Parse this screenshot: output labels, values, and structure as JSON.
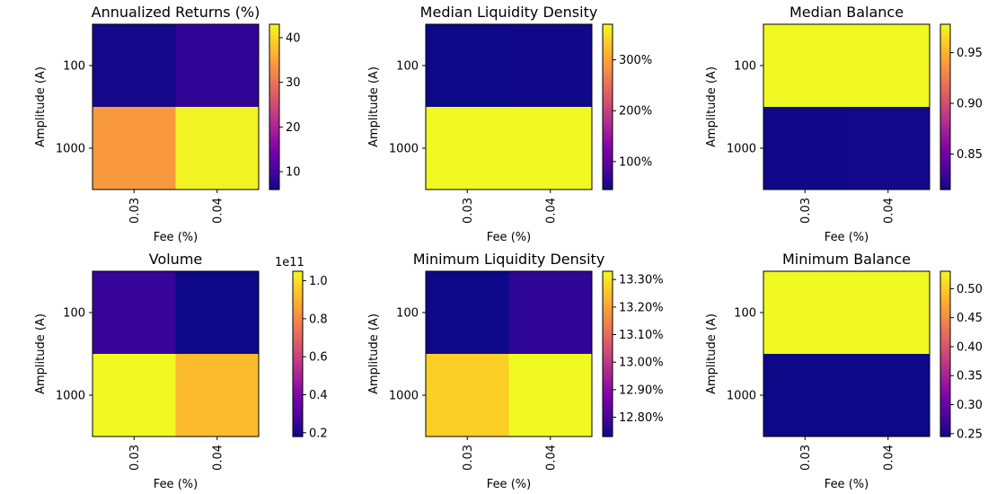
{
  "colors": {
    "plasma": [
      "#0d0887",
      "#46039f",
      "#7201a8",
      "#9c179e",
      "#bd3786",
      "#d8576b",
      "#ed7953",
      "#fb9f3a",
      "#fdca26",
      "#f0f921"
    ]
  },
  "chart_data": [
    {
      "type": "heatmap",
      "title": "Annualized Returns (%)",
      "xlabel": "Fee (%)",
      "ylabel": "Amplitude (A)",
      "x_ticks": [
        "0.03",
        "0.04"
      ],
      "y_ticks": [
        "100",
        "1000"
      ],
      "values": [
        [
          6.5,
          8.5
        ],
        [
          34.0,
          42.5
        ]
      ],
      "colorbar": {
        "min": 6.0,
        "max": 43.0,
        "ticks": [
          10,
          20,
          30,
          40
        ],
        "tick_labels": [
          "10",
          "20",
          "30",
          "40"
        ],
        "offset": ""
      }
    },
    {
      "type": "heatmap",
      "title": "Median Liquidity Density",
      "xlabel": "Fee (%)",
      "ylabel": "Amplitude (A)",
      "x_ticks": [
        "0.03",
        "0.04"
      ],
      "y_ticks": [
        "100",
        "1000"
      ],
      "values": [
        [
          45,
          47
        ],
        [
          370,
          370
        ]
      ],
      "colorbar": {
        "min": 45,
        "max": 370,
        "ticks": [
          100,
          200,
          300
        ],
        "tick_labels": [
          "100%",
          "200%",
          "300%"
        ],
        "offset": ""
      }
    },
    {
      "type": "heatmap",
      "title": "Median Balance",
      "xlabel": "Fee (%)",
      "ylabel": "Amplitude (A)",
      "x_ticks": [
        "0.03",
        "0.04"
      ],
      "y_ticks": [
        "100",
        "1000"
      ],
      "values": [
        [
          0.978,
          0.978
        ],
        [
          0.816,
          0.817
        ]
      ],
      "colorbar": {
        "min": 0.815,
        "max": 0.978,
        "ticks": [
          0.85,
          0.9,
          0.95
        ],
        "tick_labels": [
          "0.85",
          "0.90",
          "0.95"
        ],
        "offset": ""
      }
    },
    {
      "type": "heatmap",
      "title": "Volume",
      "xlabel": "Fee (%)",
      "ylabel": "Amplitude (A)",
      "x_ticks": [
        "0.03",
        "0.04"
      ],
      "y_ticks": [
        "100",
        "1000"
      ],
      "values": [
        [
          0.25,
          0.18
        ],
        [
          1.05,
          0.92
        ]
      ],
      "colorbar": {
        "min": 0.18,
        "max": 1.05,
        "ticks": [
          0.2,
          0.4,
          0.6,
          0.8,
          1.0
        ],
        "tick_labels": [
          "0.2",
          "0.4",
          "0.6",
          "0.8",
          "1.0"
        ],
        "offset": "1e11"
      }
    },
    {
      "type": "heatmap",
      "title": "Minimum Liquidity Density",
      "xlabel": "Fee (%)",
      "ylabel": "Amplitude (A)",
      "x_ticks": [
        "0.03",
        "0.04"
      ],
      "y_ticks": [
        "100",
        "1000"
      ],
      "values": [
        [
          12.73,
          12.77
        ],
        [
          13.27,
          13.33
        ]
      ],
      "colorbar": {
        "min": 12.73,
        "max": 13.33,
        "ticks": [
          12.8,
          12.9,
          13.0,
          13.1,
          13.2,
          13.3
        ],
        "tick_labels": [
          "12.80%",
          "12.90%",
          "13.00%",
          "13.10%",
          "13.20%",
          "13.30%"
        ],
        "offset": ""
      }
    },
    {
      "type": "heatmap",
      "title": "Minimum Balance",
      "xlabel": "Fee (%)",
      "ylabel": "Amplitude (A)",
      "x_ticks": [
        "0.03",
        "0.04"
      ],
      "y_ticks": [
        "100",
        "1000"
      ],
      "values": [
        [
          0.53,
          0.53
        ],
        [
          0.245,
          0.245
        ]
      ],
      "colorbar": {
        "min": 0.245,
        "max": 0.53,
        "ticks": [
          0.25,
          0.3,
          0.35,
          0.4,
          0.45,
          0.5
        ],
        "tick_labels": [
          "0.25",
          "0.30",
          "0.35",
          "0.40",
          "0.45",
          "0.50"
        ],
        "offset": ""
      }
    }
  ]
}
